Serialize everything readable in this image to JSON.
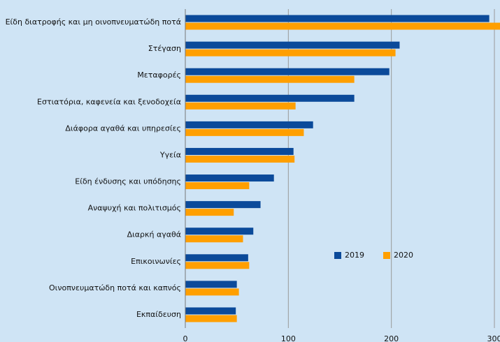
{
  "chart_data": {
    "type": "barh",
    "categories": [
      "Είδη διατροφής και μη οινοπνευματώδη ποτά",
      "Στέγαση",
      "Μεταφορές",
      "Εστιατόρια, καφενεία  και ξενοδοχεία",
      "Διάφορα αγαθά και υπηρεσίες",
      "Υγεία",
      "Είδη ένδυσης και υπόδησης",
      "Αναψυχή και πολιτισμός",
      "Διαρκή αγαθά",
      "Επικοινωνίες",
      "Οινοπνευματώδη  ποτά και καπνός",
      "Εκπαίδευση"
    ],
    "series": [
      {
        "name": "2019",
        "color": "#0b4a9a",
        "values": [
          295,
          208,
          198,
          164,
          124,
          105,
          86,
          73,
          66,
          61,
          50,
          49
        ]
      },
      {
        "name": "2020",
        "color": "#ff9f00",
        "values": [
          308,
          204,
          164,
          107,
          115,
          106,
          62,
          47,
          56,
          62,
          52,
          50
        ]
      }
    ],
    "xlim": [
      0,
      300
    ],
    "xticks": [
      0,
      100,
      200,
      300
    ],
    "grid": true,
    "legend": "right"
  }
}
